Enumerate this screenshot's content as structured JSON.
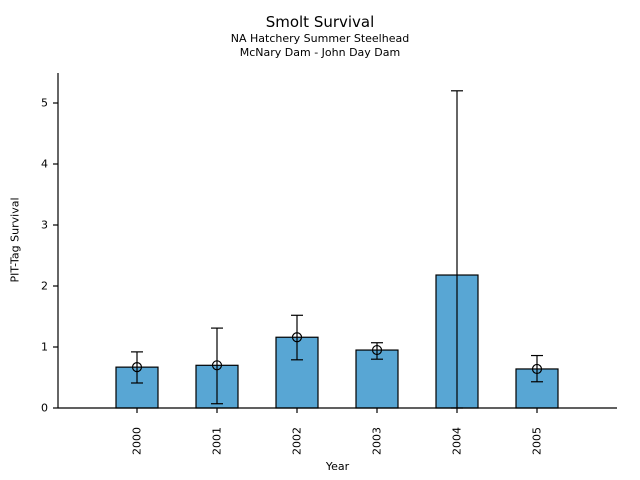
{
  "chart_data": {
    "type": "bar",
    "title": "Smolt Survival",
    "subtitle1": "NA Hatchery Summer Steelhead",
    "subtitle2": "McNary Dam - John Day Dam",
    "xlabel": "Year",
    "ylabel": "PIT-Tag Survival",
    "categories": [
      "2000",
      "2001",
      "2002",
      "2003",
      "2004",
      "2005"
    ],
    "values": [
      0.67,
      0.7,
      1.16,
      0.95,
      2.18,
      0.64
    ],
    "error_low": [
      0.41,
      0.07,
      0.79,
      0.8,
      0.0,
      0.43
    ],
    "error_high": [
      0.92,
      1.31,
      1.52,
      1.07,
      5.2,
      0.86
    ],
    "point_marker_shown": [
      true,
      true,
      true,
      true,
      false,
      true
    ],
    "yticks": [
      0,
      1,
      2,
      3,
      4,
      5
    ],
    "ylim": [
      0,
      5.5
    ],
    "grid": false,
    "legend_position": "none",
    "bar_color": "#58A6D4",
    "edge_color": "#000000",
    "axis_color": "#000000",
    "text_color": "#000000",
    "background_color": "#ffffff"
  }
}
